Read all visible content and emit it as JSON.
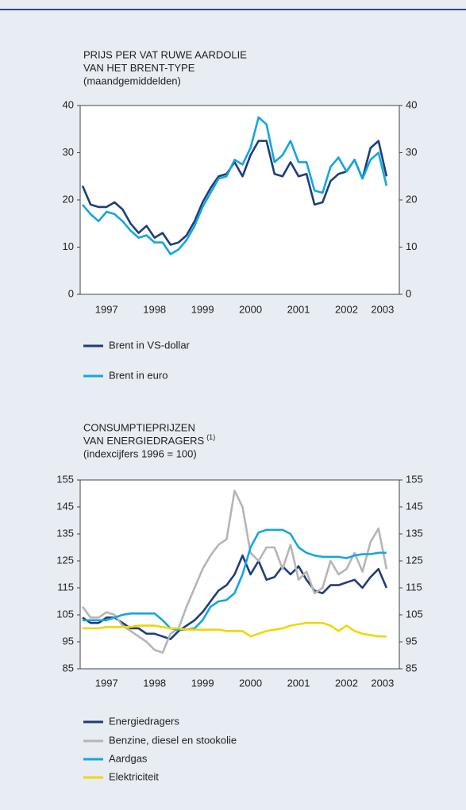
{
  "chart_data": [
    {
      "type": "line",
      "title_lines": [
        "PRIJS PER VAT RUWE AARDOLIE",
        "VAN HET BRENT-TYPE",
        "(maandgemiddelden)"
      ],
      "x": [
        1997,
        1997.167,
        1997.333,
        1997.5,
        1997.667,
        1997.833,
        1998,
        1998.167,
        1998.333,
        1998.5,
        1998.667,
        1998.833,
        1999,
        1999.167,
        1999.333,
        1999.5,
        1999.667,
        1999.833,
        2000,
        2000.167,
        2000.333,
        2000.5,
        2000.667,
        2000.833,
        2001,
        2001.167,
        2001.333,
        2001.5,
        2001.667,
        2001.833,
        2002,
        2002.167,
        2002.333,
        2002.5,
        2002.667,
        2002.833,
        2003,
        2003.167,
        2003.333
      ],
      "xlim": [
        1996.95,
        2003.6
      ],
      "xticks": [
        {
          "value": 1997.5,
          "label": "1997"
        },
        {
          "value": 1998.5,
          "label": "1998"
        },
        {
          "value": 1999.5,
          "label": "1999"
        },
        {
          "value": 2000.5,
          "label": "2000"
        },
        {
          "value": 2001.5,
          "label": "2001"
        },
        {
          "value": 2002.5,
          "label": "2002"
        },
        {
          "value": 2003.25,
          "label": "2003"
        }
      ],
      "ylim": [
        0,
        40
      ],
      "yticks": [
        0,
        10,
        20,
        30,
        40
      ],
      "series": [
        {
          "name": "Brent in VS-dollar",
          "color": "#1f3d7a",
          "values": [
            23,
            19,
            18.5,
            18.5,
            19.5,
            18,
            15,
            13,
            14.5,
            12,
            13,
            10.5,
            11,
            12.5,
            15.5,
            19.5,
            22.5,
            25,
            25.5,
            28,
            25,
            29.5,
            32.5,
            32.5,
            25.5,
            25,
            28,
            25,
            25.5,
            19,
            19.5,
            24,
            25.5,
            26,
            28.5,
            24.5,
            31,
            32.5,
            25
          ]
        },
        {
          "name": "Brent in euro",
          "color": "#14a6e0",
          "values": [
            19,
            17,
            15.5,
            17.5,
            17,
            15.5,
            13.5,
            12,
            12.5,
            11,
            11,
            8.5,
            9.5,
            11.5,
            14.5,
            18.5,
            21.5,
            24.5,
            25,
            28.5,
            27.5,
            31,
            37.5,
            36,
            28,
            29.5,
            32.5,
            28,
            28,
            22,
            21.5,
            27,
            29,
            26,
            28.5,
            24.5,
            28.5,
            30,
            23
          ]
        }
      ]
    },
    {
      "type": "line",
      "title_lines": [
        "CONSUMPTIEPRIJZEN",
        "VAN ENERGIEDRAGERS",
        "(indexcijfers 1996 = 100)"
      ],
      "title_footnote": "(1)",
      "x": [
        1997,
        1997.167,
        1997.333,
        1997.5,
        1997.667,
        1997.833,
        1998,
        1998.167,
        1998.333,
        1998.5,
        1998.667,
        1998.833,
        1999,
        1999.167,
        1999.333,
        1999.5,
        1999.667,
        1999.833,
        2000,
        2000.167,
        2000.333,
        2000.5,
        2000.667,
        2000.833,
        2001,
        2001.167,
        2001.333,
        2001.5,
        2001.667,
        2001.833,
        2002,
        2002.167,
        2002.333,
        2002.5,
        2002.667,
        2002.833,
        2003,
        2003.167,
        2003.333
      ],
      "xlim": [
        1996.95,
        2003.6
      ],
      "xticks": [
        {
          "value": 1997.5,
          "label": "1997"
        },
        {
          "value": 1998.5,
          "label": "1998"
        },
        {
          "value": 1999.5,
          "label": "1999"
        },
        {
          "value": 2000.5,
          "label": "2000"
        },
        {
          "value": 2001.5,
          "label": "2001"
        },
        {
          "value": 2002.5,
          "label": "2002"
        },
        {
          "value": 2003.25,
          "label": "2003"
        }
      ],
      "ylim": [
        85,
        155
      ],
      "yticks": [
        85,
        95,
        105,
        115,
        125,
        135,
        145,
        155
      ],
      "series": [
        {
          "name": "Energiedragers",
          "color": "#1f3d7a",
          "values": [
            104,
            102,
            102,
            104,
            104,
            102,
            100,
            100,
            98,
            98,
            97,
            96,
            99,
            101,
            103,
            106,
            110,
            114,
            116,
            120,
            127,
            120,
            125,
            118,
            119,
            123,
            120,
            123,
            118,
            114,
            113,
            116,
            116,
            117,
            118,
            115,
            119,
            122,
            115
          ]
        },
        {
          "name": "Benzine, diesel en stookolie",
          "color": "#b5b5b5",
          "values": [
            108,
            104,
            104,
            106,
            105,
            101,
            99,
            97,
            95,
            92,
            91,
            98,
            100,
            108,
            115,
            122,
            127,
            131,
            133,
            151,
            145,
            128,
            125,
            130,
            130,
            122,
            131,
            118,
            121,
            113,
            115,
            125,
            120,
            122,
            128,
            121,
            132,
            137,
            122
          ]
        },
        {
          "name": "Aardgas",
          "color": "#14a6e0",
          "values": [
            103,
            103,
            103,
            103,
            104,
            105,
            105.5,
            105.5,
            105.5,
            105.5,
            103,
            100,
            99.5,
            99.5,
            100,
            103,
            108,
            110,
            110.5,
            113,
            120,
            130,
            135.5,
            136.5,
            136.5,
            136.5,
            135,
            130,
            128,
            127,
            126.5,
            126.5,
            126.5,
            126,
            127,
            127.5,
            127.5,
            128,
            128
          ]
        },
        {
          "name": "Elektriciteit",
          "color": "#f2d600",
          "values": [
            100,
            100,
            100,
            100.5,
            100.5,
            100.5,
            100.5,
            101,
            101,
            101,
            100.5,
            100,
            100,
            99.5,
            99.5,
            99.5,
            99.5,
            99.5,
            99,
            99,
            99,
            97,
            98,
            99,
            99.5,
            100,
            101,
            101.5,
            102,
            102,
            102,
            101,
            99,
            101,
            99,
            98,
            97.5,
            97,
            97
          ]
        }
      ]
    }
  ]
}
